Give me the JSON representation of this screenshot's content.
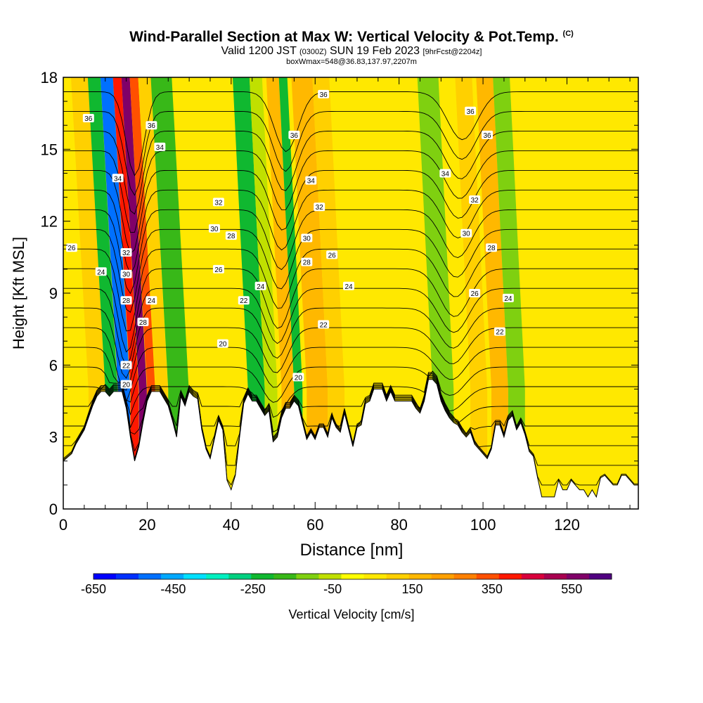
{
  "title": {
    "main": "Wind-Parallel Section at Max W: Vertical Velocity & Pot.Temp.",
    "mark": "(C)",
    "valid_prefix": "Valid 1200 JST",
    "valid_utc": "(0300Z)",
    "valid_date": "SUN 19 Feb 2023",
    "valid_fcst": "[9hrFcst@2204z]",
    "box": "boxWmax=548@36.83,137.97,2207m"
  },
  "chart_data": {
    "type": "heatmap",
    "description_series": "vertical velocity field with potential temperature contours over terrain",
    "xlabel": "Distance [nm]",
    "ylabel": "Height [Kft MSL]",
    "xlim": [
      0,
      137
    ],
    "ylim": [
      0,
      18
    ],
    "xticks": [
      0,
      20,
      40,
      60,
      80,
      100,
      120
    ],
    "yticks": [
      0,
      3,
      6,
      9,
      12,
      15,
      18
    ],
    "colorbar": {
      "label": "Vertical Velocity [cm/s]",
      "tick_labels": [
        "-650",
        "-450",
        "-250",
        "-50",
        "150",
        "350",
        "550"
      ],
      "tick_values": [
        -650,
        -450,
        -250,
        -50,
        150,
        350,
        550
      ],
      "min": -650,
      "max": 650,
      "colors": [
        "#0000ff",
        "#0030ff",
        "#0070ff",
        "#00a8ff",
        "#00e0ff",
        "#00f0c0",
        "#00d080",
        "#10b830",
        "#38b818",
        "#7fd010",
        "#c0e000",
        "#ffff00",
        "#ffe800",
        "#ffd000",
        "#ffb800",
        "#ffa000",
        "#ff8000",
        "#ff5000",
        "#ff1800",
        "#d8003c",
        "#a80050",
        "#800068",
        "#500080"
      ]
    },
    "bands": [
      {
        "x0": 0,
        "x1": 137,
        "w": 40
      },
      {
        "x0": 6,
        "x1": 11,
        "w": 130
      },
      {
        "x0": 10,
        "x1": 13,
        "w": -230
      },
      {
        "x0": 13,
        "x1": 16,
        "w": -520
      },
      {
        "x0": 16,
        "x1": 18,
        "w": 380
      },
      {
        "x0": 18,
        "x1": 20,
        "w": 560
      },
      {
        "x0": 20,
        "x1": 22,
        "w": 340
      },
      {
        "x0": 22,
        "x1": 25,
        "w": 140
      },
      {
        "x0": 25,
        "x1": 30,
        "w": -150
      },
      {
        "x0": 44,
        "x1": 48,
        "w": -200
      },
      {
        "x0": 48,
        "x1": 51,
        "w": -60
      },
      {
        "x0": 52,
        "x1": 55,
        "w": 170
      },
      {
        "x0": 55,
        "x1": 57,
        "w": -200
      },
      {
        "x0": 58,
        "x1": 63,
        "w": 150
      },
      {
        "x0": 63,
        "x1": 67,
        "w": 90
      },
      {
        "x0": 88,
        "x1": 93,
        "w": -140
      },
      {
        "x0": 97,
        "x1": 101,
        "w": 120
      },
      {
        "x0": 102,
        "x1": 106,
        "w": 160
      },
      {
        "x0": 106,
        "x1": 110,
        "w": -120
      }
    ],
    "terrain": {
      "x": [
        0,
        2,
        3,
        4,
        5,
        6,
        7,
        8,
        9,
        10,
        11,
        12,
        14,
        15,
        16,
        17,
        18,
        19,
        20,
        21,
        22,
        23,
        24,
        25,
        26,
        27,
        28,
        29,
        30,
        31,
        32,
        33,
        34,
        35,
        36,
        37,
        38,
        39,
        40,
        41,
        42,
        43,
        44,
        45,
        46,
        47,
        48,
        49,
        50,
        51,
        52,
        53,
        54,
        55,
        56,
        57,
        58,
        59,
        60,
        61,
        62,
        63,
        64,
        65,
        66,
        67,
        68,
        69,
        70,
        71,
        72,
        73,
        74,
        75,
        76,
        77,
        78,
        79,
        80,
        81,
        82,
        83,
        84,
        85,
        86,
        87,
        88,
        89,
        90,
        91,
        92,
        93,
        94,
        95,
        96,
        97,
        98,
        99,
        100,
        101,
        102,
        103,
        104,
        105,
        106,
        107,
        108,
        109,
        110,
        111,
        112,
        113,
        114,
        115,
        116,
        117,
        118,
        119,
        120,
        121,
        122,
        123,
        124,
        125,
        126,
        127,
        128,
        129,
        130,
        131,
        132,
        133,
        134,
        135,
        136,
        137
      ],
      "y": [
        2.0,
        2.3,
        2.7,
        3.0,
        3.3,
        3.8,
        4.3,
        4.7,
        4.9,
        4.9,
        4.7,
        4.9,
        4.9,
        4.2,
        3.0,
        2.0,
        2.6,
        3.6,
        4.5,
        4.9,
        4.9,
        4.9,
        4.6,
        4.3,
        3.7,
        3.0,
        4.7,
        4.3,
        4.9,
        4.7,
        4.6,
        3.3,
        2.5,
        2.1,
        2.9,
        3.7,
        3.3,
        1.2,
        0.8,
        1.4,
        3.0,
        4.4,
        4.8,
        4.5,
        4.5,
        4.2,
        3.9,
        4.1,
        2.8,
        3.0,
        3.8,
        4.2,
        4.2,
        4.5,
        4.3,
        3.6,
        2.9,
        3.2,
        2.9,
        3.4,
        3.4,
        3.0,
        3.8,
        3.4,
        3.2,
        4.0,
        3.3,
        2.6,
        3.4,
        3.5,
        4.4,
        4.5,
        5.0,
        5.0,
        5.0,
        4.5,
        4.9,
        4.5,
        4.5,
        4.5,
        4.5,
        4.5,
        4.2,
        4.0,
        4.5,
        5.4,
        5.4,
        5.2,
        4.5,
        4.1,
        3.8,
        3.6,
        3.5,
        3.2,
        3.0,
        3.2,
        2.7,
        2.5,
        2.3,
        2.1,
        2.5,
        3.5,
        3.5,
        3.0,
        3.7,
        3.9,
        3.3,
        3.6,
        3.1,
        2.4,
        2.2,
        1.3,
        0.5,
        0.5,
        0.5,
        0.5,
        1.2,
        0.8,
        0.8,
        1.2,
        1.0,
        0.8,
        0.8,
        0.5,
        0.8,
        0.5,
        1.3,
        1.4,
        1.2,
        1.0,
        1.0,
        1.4,
        1.4,
        1.2,
        1.0,
        1.0
      ]
    },
    "theta_levels": [
      18,
      19,
      20,
      21,
      22,
      23,
      24,
      25,
      26,
      27,
      28,
      29,
      30,
      31,
      32,
      33,
      34,
      35,
      36,
      37,
      38
    ],
    "contour_labels": [
      {
        "text": "36",
        "x": 6,
        "y": 16.3
      },
      {
        "text": "26",
        "x": 2,
        "y": 10.9
      },
      {
        "text": "24",
        "x": 9,
        "y": 9.9
      },
      {
        "text": "34",
        "x": 13,
        "y": 13.8
      },
      {
        "text": "32",
        "x": 15,
        "y": 10.7
      },
      {
        "text": "30",
        "x": 15,
        "y": 9.8
      },
      {
        "text": "28",
        "x": 15,
        "y": 8.7
      },
      {
        "text": "22",
        "x": 15,
        "y": 6.0
      },
      {
        "text": "20",
        "x": 15,
        "y": 5.2
      },
      {
        "text": "36",
        "x": 21,
        "y": 16.0
      },
      {
        "text": "34",
        "x": 23,
        "y": 15.1
      },
      {
        "text": "24",
        "x": 21,
        "y": 8.7
      },
      {
        "text": "28",
        "x": 19,
        "y": 7.8
      },
      {
        "text": "32",
        "x": 37,
        "y": 12.8
      },
      {
        "text": "30",
        "x": 36,
        "y": 11.7
      },
      {
        "text": "28",
        "x": 40,
        "y": 11.4
      },
      {
        "text": "26",
        "x": 37,
        "y": 10.0
      },
      {
        "text": "22",
        "x": 43,
        "y": 8.7
      },
      {
        "text": "20",
        "x": 38,
        "y": 6.9
      },
      {
        "text": "24",
        "x": 47,
        "y": 9.3
      },
      {
        "text": "36",
        "x": 62,
        "y": 17.3
      },
      {
        "text": "36",
        "x": 55,
        "y": 15.6
      },
      {
        "text": "34",
        "x": 59,
        "y": 13.7
      },
      {
        "text": "32",
        "x": 61,
        "y": 12.6
      },
      {
        "text": "30",
        "x": 58,
        "y": 11.3
      },
      {
        "text": "28",
        "x": 58,
        "y": 10.3
      },
      {
        "text": "26",
        "x": 64,
        "y": 10.6
      },
      {
        "text": "24",
        "x": 68,
        "y": 9.3
      },
      {
        "text": "22",
        "x": 62,
        "y": 7.7
      },
      {
        "text": "20",
        "x": 56,
        "y": 5.5
      },
      {
        "text": "36",
        "x": 97,
        "y": 16.6
      },
      {
        "text": "36",
        "x": 101,
        "y": 15.6
      },
      {
        "text": "34",
        "x": 91,
        "y": 14.0
      },
      {
        "text": "32",
        "x": 98,
        "y": 12.9
      },
      {
        "text": "30",
        "x": 96,
        "y": 11.5
      },
      {
        "text": "28",
        "x": 102,
        "y": 10.9
      },
      {
        "text": "26",
        "x": 98,
        "y": 9.0
      },
      {
        "text": "24",
        "x": 106,
        "y": 8.8
      },
      {
        "text": "22",
        "x": 104,
        "y": 7.4
      }
    ]
  }
}
